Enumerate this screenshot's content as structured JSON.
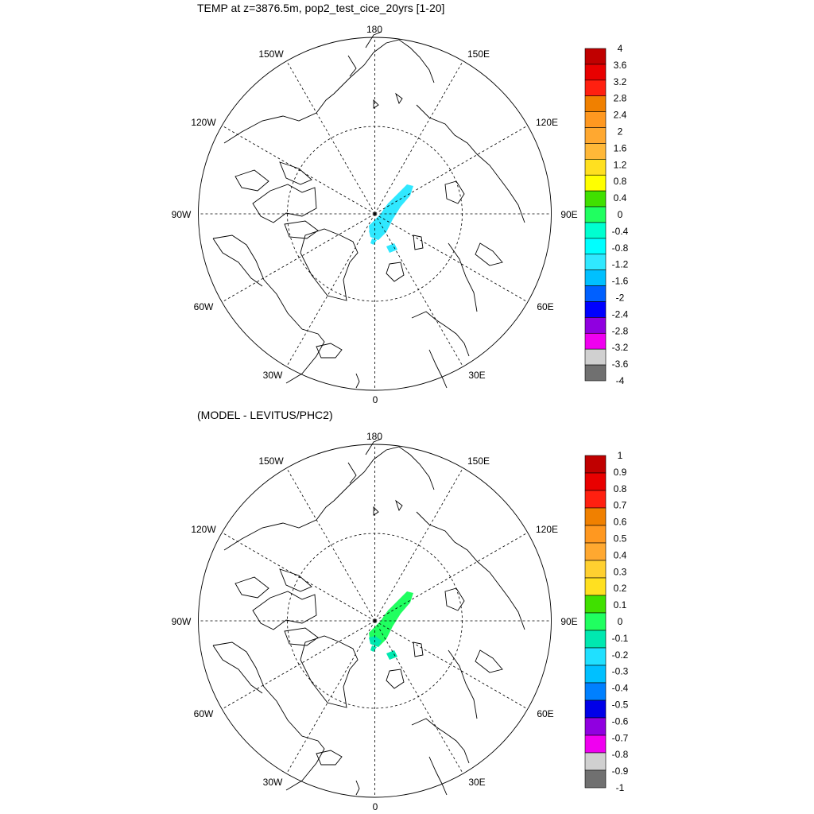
{
  "panels": [
    {
      "title": "TEMP at z=3876.5m, pop2_test_cice_20yrs [1-20]",
      "lon_labels": {
        "top": "180",
        "top_left": "150W",
        "top_right": "150E",
        "upper_left": "120W",
        "upper_right": "120E",
        "left": "90W",
        "right": "90E",
        "lower_left": "60W",
        "lower_right": "60E",
        "bottom_left": "30W",
        "bottom_right": "30E",
        "bottom": "0"
      },
      "colorbar": {
        "labels": [
          "4",
          "3.6",
          "3.2",
          "2.8",
          "2.4",
          "2",
          "1.6",
          "1.2",
          "0.8",
          "0.4",
          "0",
          "-0.4",
          "-0.8",
          "-1.2",
          "-1.6",
          "-2",
          "-2.4",
          "-2.8",
          "-3.2",
          "-3.6",
          "-4"
        ],
        "colors": [
          "#c00000",
          "#e80000",
          "#ff2010",
          "#f08000",
          "#ff9820",
          "#ffa830",
          "#ffb838",
          "#ffe020",
          "#ffff00",
          "#40e000",
          "#20ff60",
          "#00ffd0",
          "#00ffff",
          "#30e8ff",
          "#00c0ff",
          "#0060ff",
          "#0000ff",
          "#9000e0",
          "#f000f0",
          "#d0d0d0",
          "#707070"
        ]
      },
      "field_color_main": "#30e8ff",
      "field_color_tail": "#30e8ff"
    },
    {
      "title": "(MODEL - LEVITUS/PHC2)",
      "lon_labels": {
        "top": "180",
        "top_left": "150W",
        "top_right": "150E",
        "upper_left": "120W",
        "upper_right": "120E",
        "left": "90W",
        "right": "90E",
        "lower_left": "60W",
        "lower_right": "60E",
        "bottom_left": "30W",
        "bottom_right": "30E",
        "bottom": "0"
      },
      "colorbar": {
        "labels": [
          "1",
          "0.9",
          "0.8",
          "0.7",
          "0.6",
          "0.5",
          "0.4",
          "0.3",
          "0.2",
          "0.1",
          "0",
          "-0.1",
          "-0.2",
          "-0.3",
          "-0.4",
          "-0.5",
          "-0.6",
          "-0.7",
          "-0.8",
          "-0.9",
          "-1"
        ],
        "colors": [
          "#c00000",
          "#e80000",
          "#ff2010",
          "#f08000",
          "#ff9820",
          "#ffa830",
          "#ffd030",
          "#ffe020",
          "#40e000",
          "#20ff60",
          "#00e8b0",
          "#20e0ff",
          "#00c0ff",
          "#0080ff",
          "#0000e8",
          "#9000e0",
          "#f000f0",
          "#d0d0d0",
          "#707070"
        ]
      },
      "field_color_main": "#20ff60",
      "field_color_tail": "#00e8b0"
    }
  ]
}
